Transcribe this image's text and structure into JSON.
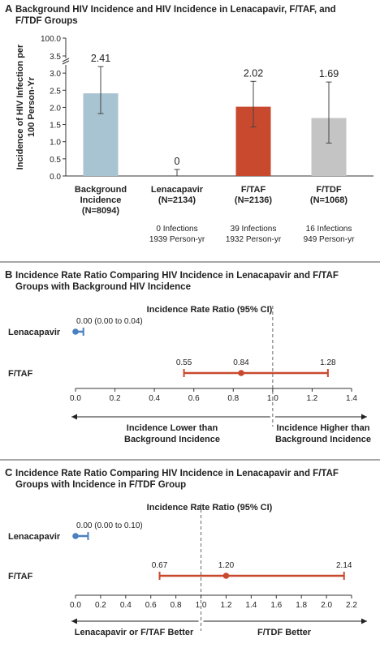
{
  "colors": {
    "background_bar": "#a8c3d1",
    "lenacapavir": "#4a7fc1",
    "ftaf": "#c8492e",
    "ftdf": "#c4c4c4",
    "divider": "#8a8a8a"
  },
  "chart_data": [
    {
      "type": "bar",
      "panel": "A",
      "title_lines": [
        "Background HIV Incidence and HIV Incidence in Lenacapavir, F/TAF, and",
        "F/TDF Groups"
      ],
      "ylabel_lines": [
        "Incidence of HIV Infection per",
        "100 Person-Yr"
      ],
      "ylim": [
        0,
        3.5
      ],
      "yticks": [
        "0.0",
        "0.5",
        "1.0",
        "1.5",
        "2.0",
        "2.5",
        "3.0",
        "3.5"
      ],
      "ytick_values": [
        0,
        0.5,
        1.0,
        1.5,
        2.0,
        2.5,
        3.0,
        3.5
      ],
      "y_break_label": "100.0",
      "categories": [
        {
          "label_lines": [
            "Background",
            "Incidence",
            "(N=8094)"
          ],
          "value": 2.41,
          "value_label": "2.41",
          "ci": [
            1.82,
            3.19
          ],
          "color": "#a8c3d1",
          "note_lines": []
        },
        {
          "label_lines": [
            "Lenacapavir",
            "(N=2134)"
          ],
          "value": 0,
          "value_label": "0",
          "ci": [
            0,
            0.19
          ],
          "color": "#4a7fc1",
          "note_lines": [
            "0 Infections",
            "1939 Person-yr"
          ]
        },
        {
          "label_lines": [
            "F/TAF",
            "(N=2136)"
          ],
          "value": 2.02,
          "value_label": "2.02",
          "ci": [
            1.43,
            2.76
          ],
          "color": "#c8492e",
          "note_lines": [
            "39 Infections",
            "1932 Person-yr"
          ]
        },
        {
          "label_lines": [
            "F/TDF",
            "(N=1068)"
          ],
          "value": 1.69,
          "value_label": "1.69",
          "ci": [
            0.96,
            2.74
          ],
          "color": "#c4c4c4",
          "note_lines": [
            "16 Infections",
            "949 Person-yr"
          ]
        }
      ]
    },
    {
      "type": "forest",
      "panel": "B",
      "title_lines": [
        "Incidence Rate Ratio Comparing HIV Incidence in Lenacapavir and F/TAF",
        "Groups with Background HIV Incidence"
      ],
      "axis_title": "Incidence Rate Ratio (95% CI)",
      "xlim": [
        0,
        1.4
      ],
      "xticks": [
        "0.0",
        "0.2",
        "0.4",
        "0.6",
        "0.8",
        "1.0",
        "1.2",
        "1.4"
      ],
      "xtick_values": [
        0,
        0.2,
        0.4,
        0.6,
        0.8,
        1.0,
        1.2,
        1.4
      ],
      "reference": 1.0,
      "rows": [
        {
          "label": "Lenacapavir",
          "point": 0.0,
          "lower": 0.0,
          "upper": 0.04,
          "text": "0.00 (0.00 to 0.04)",
          "color": "#4a7fc1"
        },
        {
          "label": "F/TAF",
          "point": 0.84,
          "lower": 0.55,
          "upper": 1.28,
          "point_label": "0.84",
          "lower_label": "0.55",
          "upper_label": "1.28",
          "color": "#c8492e"
        }
      ],
      "direction_left_lines": [
        "Incidence Lower than",
        "Background Incidence"
      ],
      "direction_right_lines": [
        "Incidence Higher than",
        "Background Incidence"
      ]
    },
    {
      "type": "forest",
      "panel": "C",
      "title_lines": [
        "Incidence Rate Ratio Comparing HIV Incidence in Lenacapavir and F/TAF",
        "Groups with Incidence in F/TDF Group"
      ],
      "axis_title": "Incidence Rate Ratio (95% CI)",
      "xlim": [
        0,
        2.2
      ],
      "xticks": [
        "0.0",
        "0.2",
        "0.4",
        "0.6",
        "0.8",
        "1.0",
        "1.2",
        "1.4",
        "1.6",
        "1.8",
        "2.0",
        "2.2"
      ],
      "xtick_values": [
        0,
        0.2,
        0.4,
        0.6,
        0.8,
        1.0,
        1.2,
        1.4,
        1.6,
        1.8,
        2.0,
        2.2
      ],
      "reference": 1.0,
      "rows": [
        {
          "label": "Lenacapavir",
          "point": 0.0,
          "lower": 0.0,
          "upper": 0.1,
          "text": "0.00 (0.00 to 0.10)",
          "color": "#4a7fc1"
        },
        {
          "label": "F/TAF",
          "point": 1.2,
          "lower": 0.67,
          "upper": 2.14,
          "point_label": "1.20",
          "lower_label": "0.67",
          "upper_label": "2.14",
          "color": "#c8492e"
        }
      ],
      "direction_left_lines": [
        "Lenacapavir or F/TAF Better"
      ],
      "direction_right_lines": [
        "F/TDF Better"
      ]
    }
  ]
}
